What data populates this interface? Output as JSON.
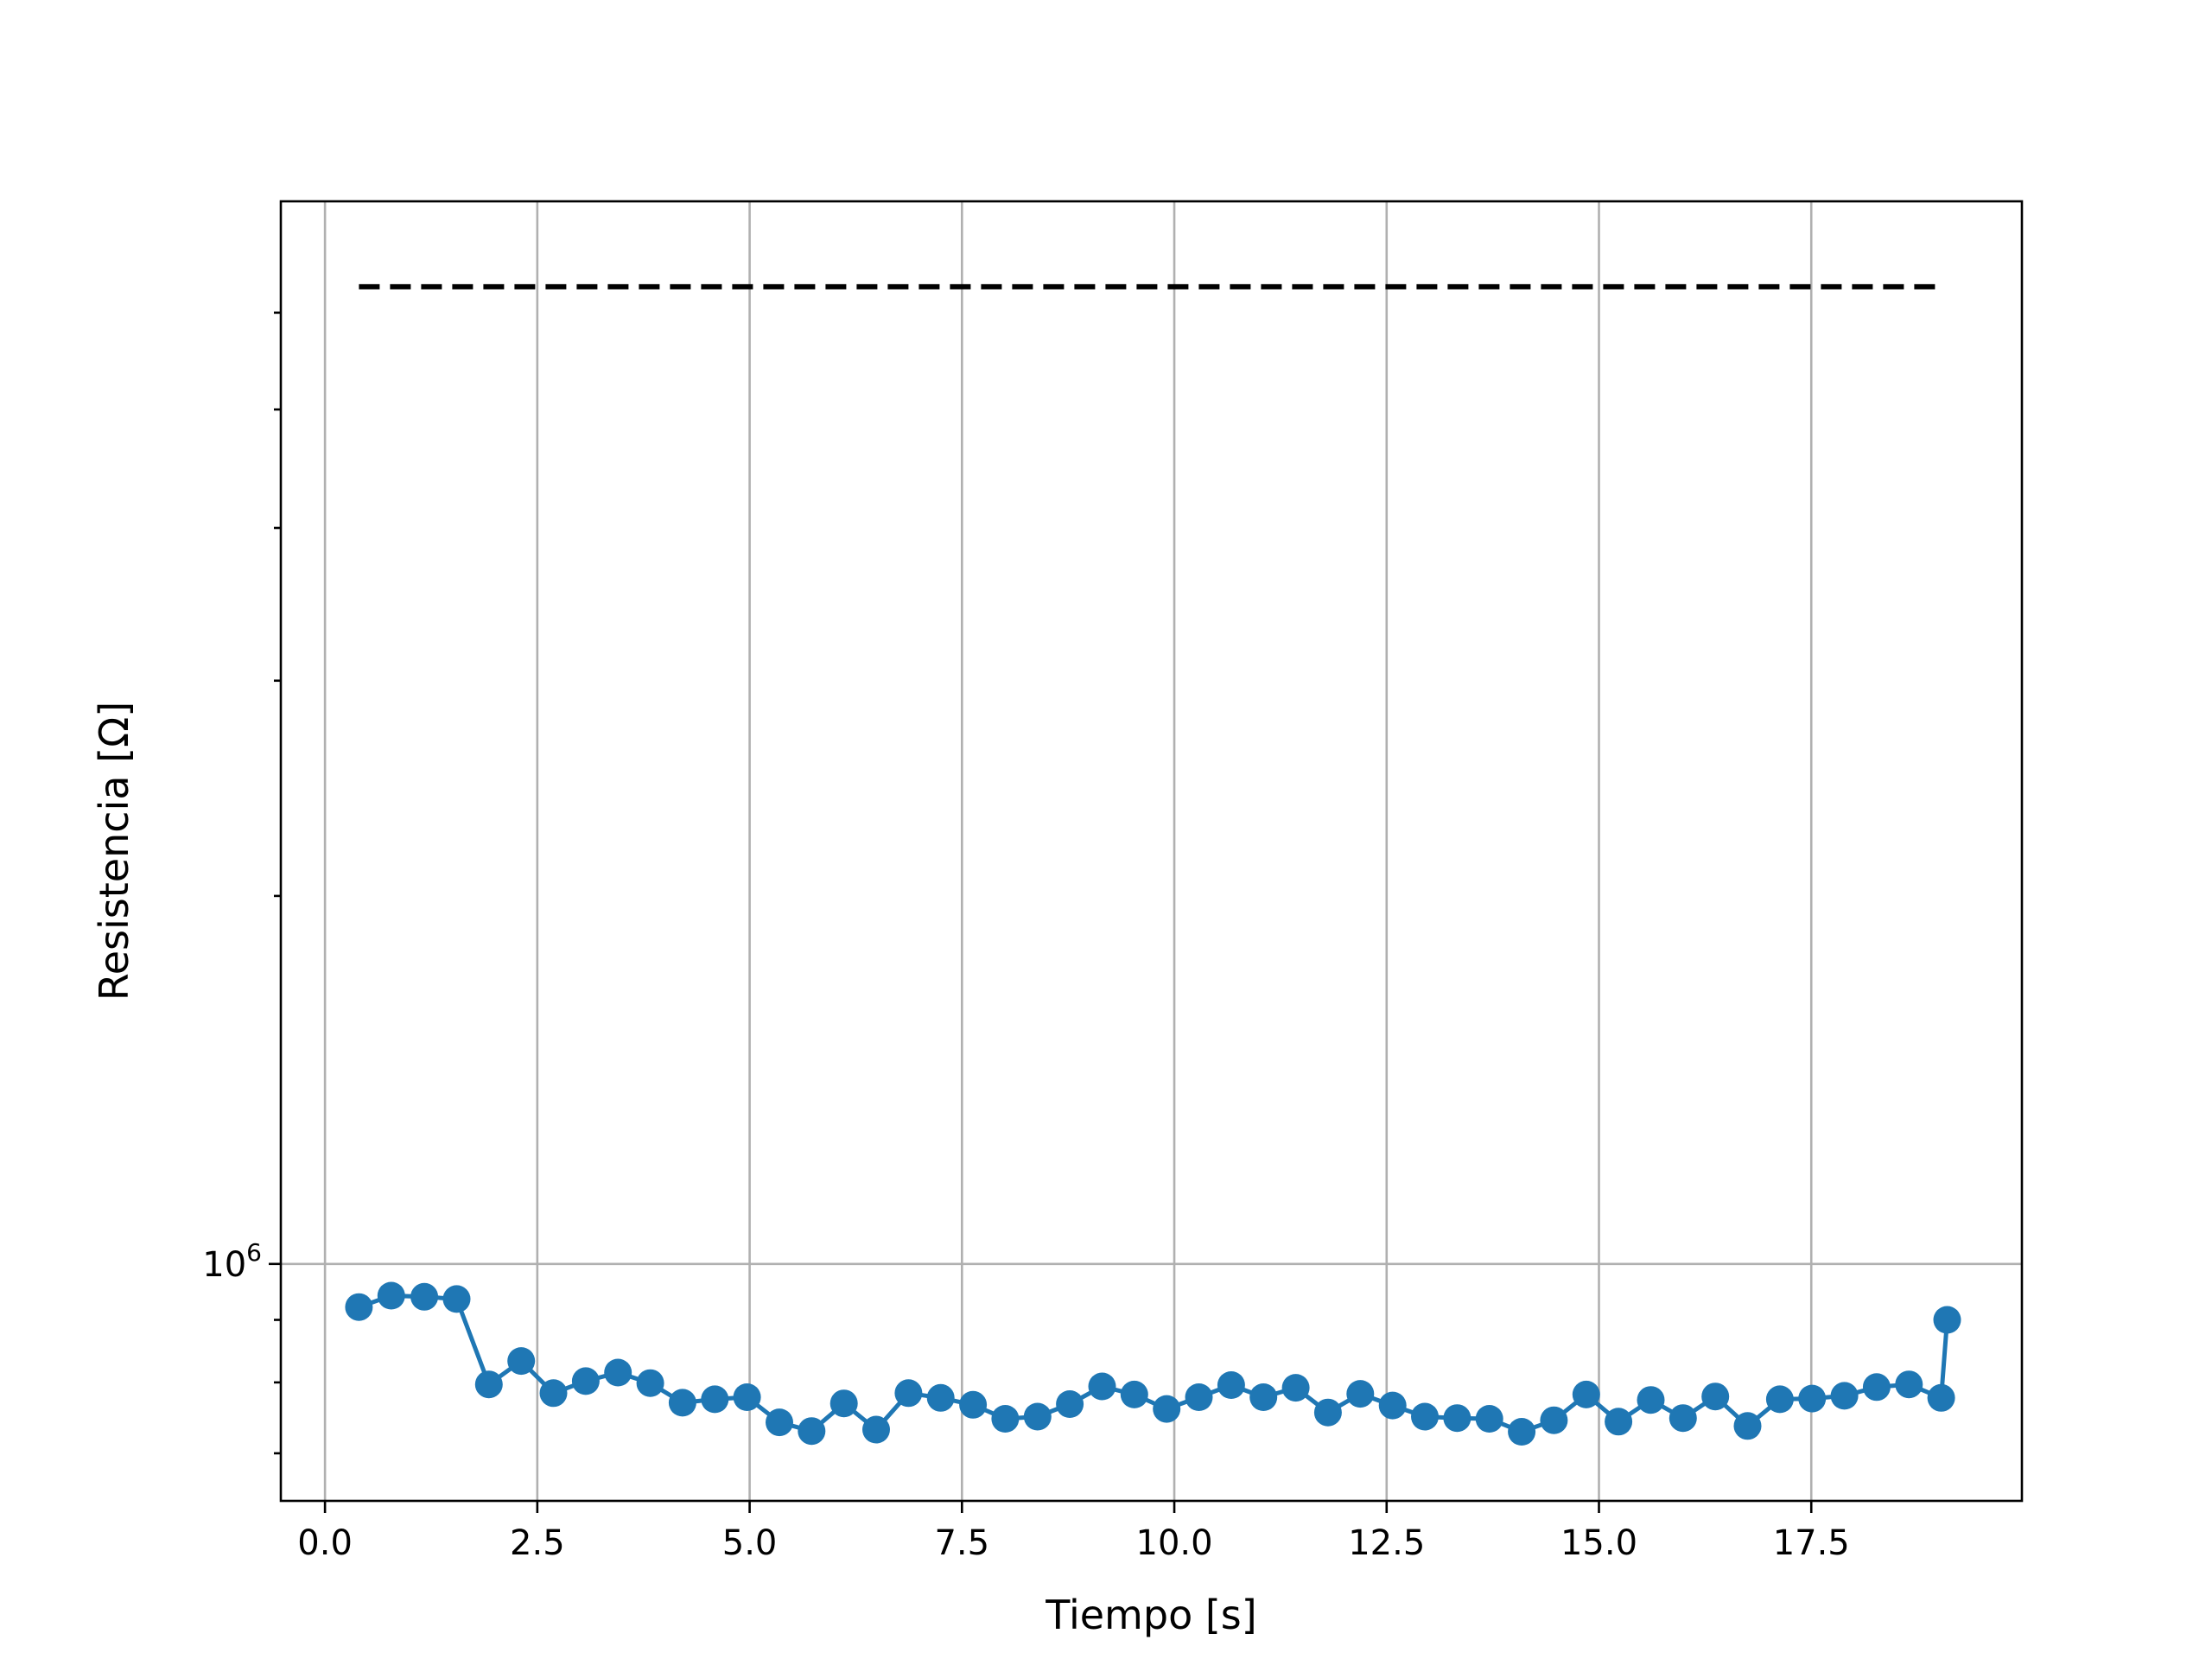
{
  "chart_data": {
    "type": "line",
    "title": "",
    "xlabel": "Tiempo [s]",
    "ylabel": "Resistencia [Ω]",
    "y_scale": "log",
    "xlim": [
      -0.52,
      19.98
    ],
    "ylim": [
      640000,
      7400000
    ],
    "x_ticks": [
      0.0,
      2.5,
      5.0,
      7.5,
      10.0,
      12.5,
      15.0,
      17.5
    ],
    "x_tick_labels": [
      "0.0",
      "2.5",
      "5.0",
      "7.5",
      "10.0",
      "12.5",
      "15.0",
      "17.5"
    ],
    "y_major_ticks": [
      1000000
    ],
    "y_major_tick_labels": [
      {
        "base": "10",
        "exp": "6"
      }
    ],
    "y_minor_ticks": [
      700000,
      800000,
      900000,
      2000000,
      3000000,
      4000000,
      5000000,
      6000000
    ],
    "grid": true,
    "legend": "none",
    "series": [
      {
        "color": "#1f77b4",
        "style": "solid-line-with-circle-markers",
        "x": [
          0.4,
          0.78,
          1.17,
          1.55,
          1.93,
          2.31,
          2.69,
          3.07,
          3.45,
          3.83,
          4.21,
          4.59,
          4.97,
          5.35,
          5.73,
          6.11,
          6.49,
          6.87,
          7.25,
          7.63,
          8.01,
          8.39,
          8.77,
          9.15,
          9.53,
          9.91,
          10.29,
          10.67,
          11.05,
          11.43,
          11.81,
          12.19,
          12.57,
          12.95,
          13.33,
          13.71,
          14.09,
          14.47,
          14.85,
          15.23,
          15.61,
          15.99,
          16.37,
          16.75,
          17.13,
          17.51,
          17.89,
          18.27,
          18.65,
          19.03,
          19.1
        ],
        "y": [
          922000,
          942000,
          940000,
          936000,
          797000,
          833000,
          784000,
          802000,
          815000,
          799000,
          770000,
          775000,
          778000,
          742000,
          730000,
          769000,
          732000,
          784000,
          777000,
          767000,
          747000,
          750000,
          768000,
          794000,
          782000,
          761000,
          778000,
          796000,
          778000,
          792000,
          756000,
          783000,
          766000,
          750000,
          748000,
          747000,
          729000,
          745000,
          782000,
          743000,
          774000,
          748000,
          779000,
          737000,
          775000,
          776000,
          780000,
          793000,
          797000,
          777000,
          900000
        ]
      },
      {
        "color": "#000000",
        "style": "dashed",
        "x": [
          0.4,
          19.0
        ],
        "y": [
          6300000,
          6300000
        ]
      }
    ]
  }
}
